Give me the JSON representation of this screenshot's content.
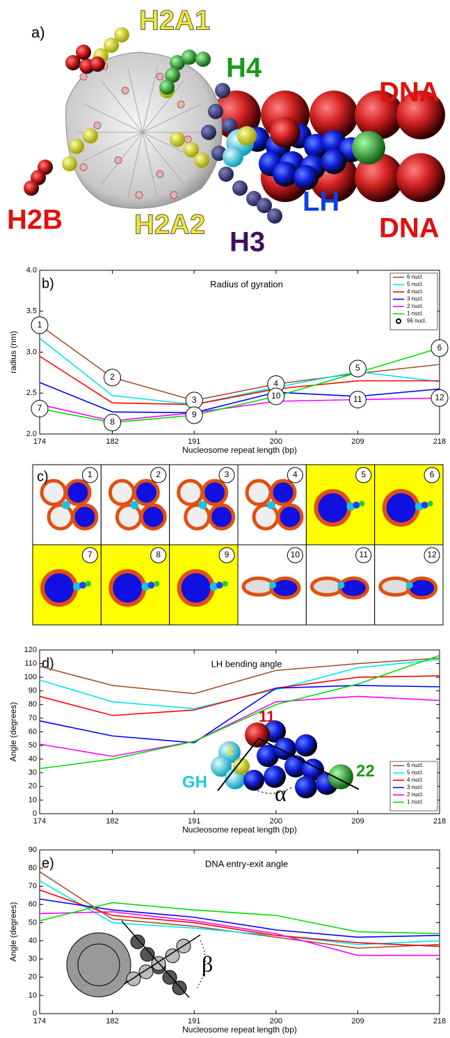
{
  "panel_a": {
    "label": "a)",
    "labels": [
      "H2A1",
      "H4",
      "DNA",
      "H2B",
      "H2A2",
      "LH",
      "H3",
      "DNA"
    ]
  },
  "panel_c": {
    "label": "c)",
    "highlight_color": "#ffff00",
    "cells": [
      {
        "label": "1",
        "highlight": false
      },
      {
        "label": "2",
        "highlight": false
      },
      {
        "label": "3",
        "highlight": false
      },
      {
        "label": "4",
        "highlight": false
      },
      {
        "label": "5",
        "highlight": true
      },
      {
        "label": "6",
        "highlight": true
      },
      {
        "label": "7",
        "highlight": true
      },
      {
        "label": "8",
        "highlight": true
      },
      {
        "label": "9",
        "highlight": true
      },
      {
        "label": "10",
        "highlight": false
      },
      {
        "label": "11",
        "highlight": false
      },
      {
        "label": "12",
        "highlight": false
      }
    ]
  },
  "chart_data": [
    {
      "type": "line",
      "panel": "b)",
      "title": "Radius of gyration",
      "xlabel": "Nucleosome repeat length (bp)",
      "ylabel": "radius (nm)",
      "x": [
        174,
        182,
        191,
        200,
        209,
        218
      ],
      "xlim": [
        174,
        218
      ],
      "xticks": [
        174,
        182,
        191,
        200,
        209,
        218
      ],
      "ylim": [
        2,
        4
      ],
      "yticks": [
        {
          "value": 2,
          "label": "2.0"
        },
        2.5,
        {
          "value": 3,
          "label": "3.0"
        },
        3.5,
        {
          "value": 4,
          "label": "4.0"
        }
      ],
      "legend": "upper right",
      "series": [
        {
          "name": "6  nucl.",
          "color": "#a0522d",
          "values": [
            3.33,
            2.69,
            2.41,
            2.61,
            2.74,
            2.85
          ]
        },
        {
          "name": "5  nucl.",
          "color": "#00e5ee",
          "values": [
            3.17,
            2.47,
            2.36,
            2.57,
            2.76,
            2.64
          ]
        },
        {
          "name": "4  nucl.",
          "color": "#ff0000",
          "values": [
            2.95,
            2.38,
            2.36,
            2.55,
            2.65,
            2.65
          ]
        },
        {
          "name": "3  nucl.",
          "color": "#0000ff",
          "values": [
            2.63,
            2.27,
            2.26,
            2.51,
            2.46,
            2.55
          ]
        },
        {
          "name": "2  nucl.",
          "color": "#ff00ff",
          "values": [
            2.36,
            2.16,
            2.26,
            2.4,
            2.42,
            2.44
          ]
        },
        {
          "name": "1  nucl.",
          "color": "#00dd00",
          "values": [
            2.31,
            2.14,
            2.23,
            2.46,
            2.75,
            3.05
          ]
        },
        {
          "name": "96 nucl.",
          "color": "#000000",
          "marker": "circle",
          "values": [
            null,
            null,
            null,
            null,
            2.73,
            null
          ]
        }
      ],
      "annotations": [
        {
          "label": "1",
          "x": 174,
          "y": 3.33
        },
        {
          "label": "2",
          "x": 182,
          "y": 2.69
        },
        {
          "label": "3",
          "x": 191,
          "y": 2.41
        },
        {
          "label": "4",
          "x": 200,
          "y": 2.61
        },
        {
          "label": "5",
          "x": 209,
          "y": 2.8
        },
        {
          "label": "6",
          "x": 218,
          "y": 3.05
        },
        {
          "label": "7",
          "x": 174,
          "y": 2.31
        },
        {
          "label": "8",
          "x": 182,
          "y": 2.14
        },
        {
          "label": "9",
          "x": 191,
          "y": 2.23
        },
        {
          "label": "10",
          "x": 200,
          "y": 2.46
        },
        {
          "label": "11",
          "x": 209,
          "y": 2.42
        },
        {
          "label": "12",
          "x": 218,
          "y": 2.44
        }
      ]
    },
    {
      "type": "line",
      "panel": "d)",
      "title": "LH bending angle",
      "xlabel": "Nucleosome repeat length (bp)",
      "ylabel": "Angle (degrees)",
      "x": [
        174,
        182,
        191,
        200,
        209,
        218
      ],
      "xlim": [
        174,
        218
      ],
      "xticks": [
        174,
        182,
        191,
        200,
        209,
        218
      ],
      "ylim": [
        0,
        120
      ],
      "yticks": [
        0,
        10,
        20,
        30,
        40,
        50,
        60,
        70,
        80,
        90,
        100,
        110,
        120
      ],
      "legend": "lower right",
      "series": [
        {
          "name": "6 nucl.",
          "color": "#a0522d",
          "values": [
            108,
            94,
            88,
            105,
            110,
            114
          ]
        },
        {
          "name": "5 nucl.",
          "color": "#00e5ee",
          "values": [
            98,
            82,
            77,
            91,
            107,
            113
          ]
        },
        {
          "name": "4 nucl.",
          "color": "#ff0000",
          "values": [
            86,
            72,
            76,
            92,
            100,
            101
          ]
        },
        {
          "name": "3 nucl.",
          "color": "#0000ff",
          "values": [
            68,
            57,
            52,
            92,
            94,
            93
          ]
        },
        {
          "name": "2 nucl.",
          "color": "#ff00ff",
          "values": [
            51,
            42,
            53,
            82,
            86,
            83
          ]
        },
        {
          "name": "1 nucl.",
          "color": "#00dd00",
          "values": [
            33,
            40,
            53,
            80,
            95,
            116
          ]
        }
      ],
      "inset_labels": [
        "11",
        "1",
        "GH",
        "22",
        "α"
      ]
    },
    {
      "type": "line",
      "panel": "e)",
      "title": "DNA entry-exit angle",
      "xlabel": "Nucleosome repeat length (bp)",
      "ylabel": "Angle (degrees)",
      "x": [
        174,
        182,
        191,
        200,
        209,
        218
      ],
      "xlim": [
        174,
        218
      ],
      "xticks": [
        174,
        182,
        191,
        200,
        209,
        218
      ],
      "ylim": [
        0,
        90
      ],
      "yticks": [
        0,
        10,
        20,
        30,
        40,
        50,
        60,
        70,
        80,
        90
      ],
      "series": [
        {
          "name": "6 nucl.",
          "color": "#a0522d",
          "values": [
            78,
            52,
            48,
            42,
            36,
            38
          ]
        },
        {
          "name": "5 nucl.",
          "color": "#00e5ee",
          "values": [
            73,
            50,
            47,
            43,
            38,
            40
          ]
        },
        {
          "name": "4 nucl.",
          "color": "#ff0000",
          "values": [
            68,
            54,
            50,
            43,
            39,
            37
          ]
        },
        {
          "name": "3 nucl.",
          "color": "#0000ff",
          "values": [
            63,
            57,
            53,
            46,
            42,
            43
          ]
        },
        {
          "name": "2 nucl.",
          "color": "#ff00ff",
          "values": [
            55,
            56,
            51,
            44,
            32,
            32
          ]
        },
        {
          "name": "1 nucl.",
          "color": "#00dd00",
          "values": [
            51,
            61,
            57,
            54,
            45,
            44
          ]
        }
      ],
      "inset_labels": [
        "β"
      ]
    }
  ]
}
